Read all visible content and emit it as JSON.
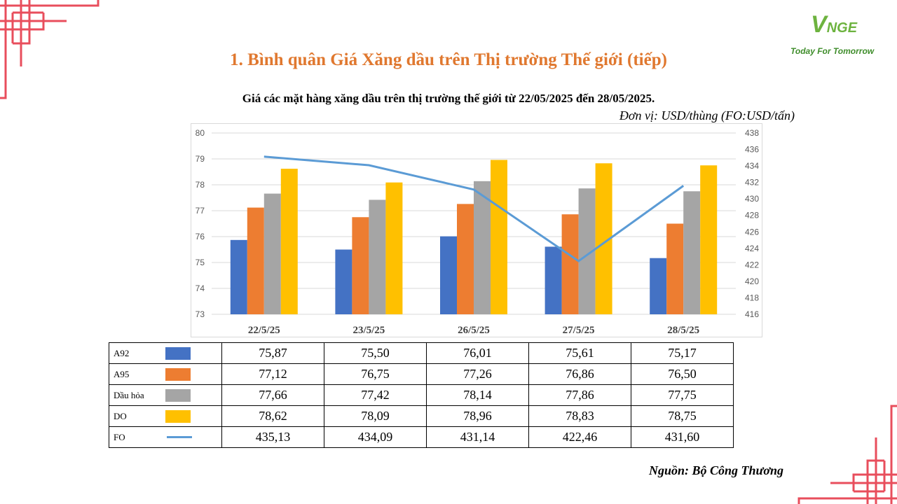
{
  "page": {
    "title": "1. Bình quân Giá Xăng dầu trên Thị trường Thế giới (tiếp)",
    "source": "Nguồn: Bộ Công Thương"
  },
  "logo": {
    "mark_v": "V",
    "mark_rest": "NGE",
    "tagline": "Today For Tomorrow"
  },
  "colors": {
    "accent": "#e0782f",
    "frame": "#e84e5c",
    "logo_green": "#6db33f"
  },
  "chart_data": {
    "type": "bar",
    "title": "Giá các mặt hàng xăng dầu trên thị trường thế giới từ 22/05/2025 đến 28/05/2025.",
    "unit": "Đơn vị:  USD/thùng (FO:USD/tấn)",
    "categories": [
      "22/5/25",
      "23/5/25",
      "26/5/25",
      "27/5/25",
      "28/5/25"
    ],
    "ylim": [
      73,
      80
    ],
    "y_ticks": [
      73,
      74,
      75,
      76,
      77,
      78,
      79,
      80
    ],
    "y2lim": [
      416,
      438
    ],
    "y2_ticks": [
      416,
      418,
      420,
      422,
      424,
      426,
      428,
      430,
      432,
      434,
      436,
      438
    ],
    "grid": true,
    "series": [
      {
        "name": "A92",
        "kind": "bar",
        "axis": "left",
        "color": "#4472c4",
        "values": [
          75.87,
          75.5,
          76.01,
          75.61,
          75.17
        ],
        "labels": [
          "75,87",
          "75,50",
          "76,01",
          "75,61",
          "75,17"
        ]
      },
      {
        "name": "A95",
        "kind": "bar",
        "axis": "left",
        "color": "#ed7d31",
        "values": [
          77.12,
          76.75,
          77.26,
          76.86,
          76.5
        ],
        "labels": [
          "77,12",
          "76,75",
          "77,26",
          "76,86",
          "76,50"
        ]
      },
      {
        "name": "Dầu hỏa",
        "kind": "bar",
        "axis": "left",
        "color": "#a5a5a5",
        "values": [
          77.66,
          77.42,
          78.14,
          77.86,
          77.75
        ],
        "labels": [
          "77,66",
          "77,42",
          "78,14",
          "77,86",
          "77,75"
        ]
      },
      {
        "name": "DO",
        "kind": "bar",
        "axis": "left",
        "color": "#ffc000",
        "values": [
          78.62,
          78.09,
          78.96,
          78.83,
          78.75
        ],
        "labels": [
          "78,62",
          "78,09",
          "78,96",
          "78,83",
          "78,75"
        ]
      },
      {
        "name": "FO",
        "kind": "line",
        "axis": "right",
        "color": "#5b9bd5",
        "values": [
          435.13,
          434.09,
          431.14,
          422.46,
          431.6
        ],
        "labels": [
          "435,13",
          "434,09",
          "431,14",
          "422,46",
          "431,60"
        ]
      }
    ]
  }
}
